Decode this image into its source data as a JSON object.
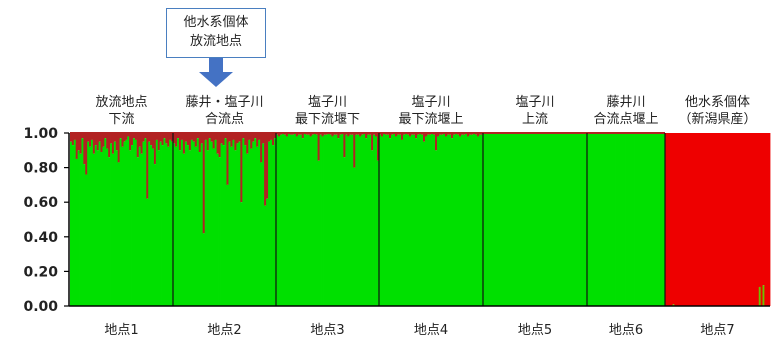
{
  "colors": {
    "green": "#00e000",
    "red": "#ee0000",
    "dark_red": "#b22222",
    "arrow": "#4472c4",
    "callout_border": "#4a7fc0"
  },
  "callout": {
    "line1": "他水系個体",
    "line2": "放流地点",
    "arrow_icon": "down-arrow-icon"
  },
  "chart_data": {
    "type": "bar",
    "stacked": true,
    "title": "",
    "xlabel": "",
    "ylabel": "",
    "ylim": [
      0,
      1
    ],
    "yticks": [
      "0.00",
      "0.20",
      "0.40",
      "0.60",
      "0.80",
      "1.00"
    ],
    "grid": false,
    "legend": "none",
    "groups": [
      {
        "site": "地点1",
        "label_lines": [
          "放流地点",
          "下流"
        ],
        "green_values": [
          0.95,
          0.93,
          0.96,
          0.85,
          0.9,
          0.88,
          0.97,
          0.82,
          0.76,
          0.95,
          0.92,
          0.96,
          0.88,
          0.93,
          0.9,
          0.95,
          0.89,
          0.92,
          0.97,
          0.91,
          0.86,
          0.94,
          0.88,
          0.95,
          0.9,
          0.83,
          0.97,
          0.92,
          0.95,
          0.96,
          0.98,
          0.9,
          0.93,
          0.97,
          0.96,
          0.86,
          0.92,
          0.88,
          0.95,
          0.97,
          0.62,
          0.95,
          0.93,
          0.91,
          0.82,
          0.96,
          0.9,
          0.95,
          0.93,
          0.97,
          0.94,
          0.92,
          0.96,
          0.95
        ]
      },
      {
        "site": "地点2",
        "label_lines": [
          "藤井・塩子川",
          "合流点"
        ],
        "green_values": [
          0.94,
          0.92,
          0.97,
          0.9,
          0.96,
          0.88,
          0.95,
          0.93,
          0.9,
          0.96,
          0.95,
          0.92,
          0.97,
          0.89,
          0.94,
          0.42,
          0.96,
          0.9,
          0.97,
          0.95,
          0.91,
          0.96,
          0.88,
          0.86,
          0.94,
          0.93,
          0.97,
          0.7,
          0.95,
          0.92,
          0.96,
          0.9,
          0.94,
          0.95,
          0.6,
          0.97,
          0.93,
          0.88,
          0.96,
          0.91,
          0.95,
          0.97,
          0.92,
          0.96,
          0.83,
          0.94,
          0.58,
          0.62,
          0.95,
          0.96,
          0.93,
          0.97
        ]
      },
      {
        "site": "地点3",
        "label_lines": [
          "塩子川",
          "最下流堰下"
        ],
        "green_values": [
          0.99,
          0.98,
          0.99,
          1,
          0.99,
          0.98,
          1,
          0.99,
          0.99,
          1,
          0.98,
          0.99,
          0.99,
          0.97,
          1,
          0.99,
          0.99,
          0.98,
          0.99,
          1,
          0.99,
          0.84,
          0.99,
          0.98,
          0.99,
          0.99,
          1,
          0.99,
          0.98,
          0.99,
          0.99,
          0.97,
          0.99,
          1,
          0.86,
          0.99,
          0.98,
          0.99,
          0.99,
          0.8,
          0.99,
          0.99,
          0.98,
          0.99,
          1,
          0.97,
          0.99,
          0.99,
          0.9,
          0.99,
          0.98,
          0.84
        ]
      },
      {
        "site": "地点4",
        "label_lines": [
          "塩子川",
          "最下流堰上"
        ],
        "green_values": [
          0.99,
          0.98,
          1,
          0.99,
          0.99,
          0.97,
          0.99,
          1,
          0.98,
          0.99,
          0.99,
          0.96,
          0.99,
          1,
          0.99,
          0.98,
          0.99,
          0.99,
          0.97,
          0.99,
          1,
          0.99,
          0.95,
          0.98,
          0.99,
          0.99,
          1,
          0.99,
          0.9,
          0.98,
          0.99,
          0.99,
          1,
          0.98,
          0.99,
          0.99,
          0.97,
          0.99,
          1,
          0.99,
          0.98,
          0.99,
          0.99,
          1,
          0.98,
          0.99,
          0.99,
          1,
          0.99,
          0.98,
          0.99,
          0.99
        ]
      },
      {
        "site": "地点5",
        "label_lines": [
          "塩子川",
          "上流"
        ],
        "green_values": [
          1,
          1,
          0.995,
          1,
          1,
          1,
          1,
          0.995,
          1,
          1,
          1,
          1,
          1,
          0.995,
          1,
          1,
          1,
          1,
          1,
          1,
          1,
          0.995,
          1,
          1,
          1,
          1,
          1,
          1,
          1,
          1,
          1,
          0.995,
          1,
          1,
          1,
          1,
          1,
          1,
          1,
          1,
          1,
          1,
          1,
          1,
          1,
          1,
          1,
          1,
          1,
          1,
          1,
          1
        ]
      },
      {
        "site": "地点6",
        "label_lines": [
          "藤井川",
          "合流点堰上"
        ],
        "green_values": [
          1,
          1,
          1,
          0.995,
          1,
          1,
          1,
          1,
          1,
          1,
          1,
          0.995,
          1,
          1,
          1,
          1,
          1,
          1,
          1,
          1,
          1,
          1,
          1,
          1,
          1,
          1,
          1,
          1,
          1,
          1,
          1,
          1,
          1,
          1,
          1,
          1,
          1,
          1,
          1,
          1,
          1
        ]
      },
      {
        "site": "地点7",
        "label_lines": [
          "他水系個体",
          "（新潟県産）"
        ],
        "green_values": [
          0,
          0,
          0,
          0,
          0.01,
          0,
          0,
          0,
          0,
          0,
          0,
          0,
          0,
          0,
          0,
          0,
          0,
          0,
          0,
          0,
          0,
          0,
          0,
          0,
          0,
          0,
          0,
          0,
          0,
          0,
          0,
          0,
          0,
          0,
          0,
          0,
          0,
          0,
          0,
          0,
          0,
          0,
          0,
          0,
          0,
          0,
          0,
          0,
          0,
          0,
          0.11,
          0,
          0.12,
          0,
          0,
          0
        ]
      }
    ]
  }
}
